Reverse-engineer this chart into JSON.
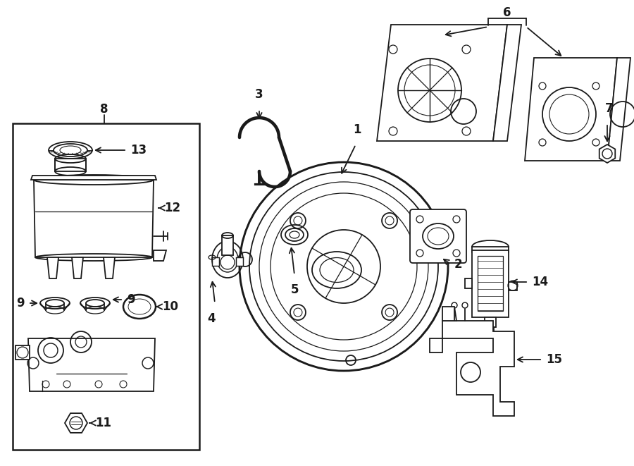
{
  "bg_color": "#ffffff",
  "line_color": "#1a1a1a",
  "figsize": [
    9.0,
    6.61
  ],
  "dpi": 100,
  "lw": 1.3,
  "fs": 12
}
